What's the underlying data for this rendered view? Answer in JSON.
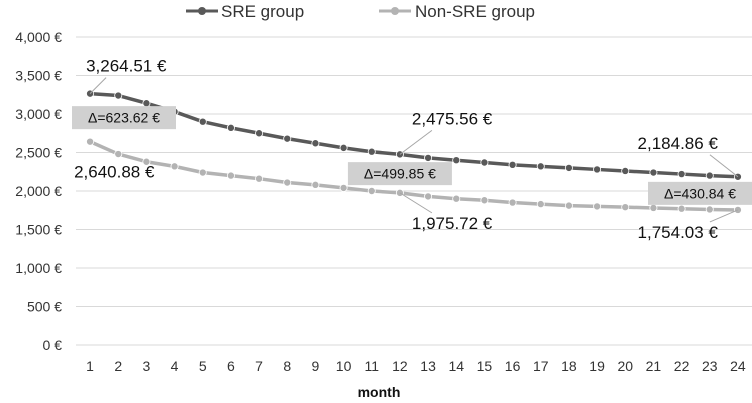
{
  "chart_data": {
    "type": "line",
    "xlabel": "month",
    "ylabel": "",
    "ylim": [
      0,
      4000
    ],
    "y_tick_values": [
      0,
      500,
      1000,
      1500,
      2000,
      2500,
      3000,
      3500,
      4000
    ],
    "y_tick_labels": [
      "0 €",
      "500 €",
      "1,000 €",
      "1,500 €",
      "2,000 €",
      "2,500 €",
      "3,000 €",
      "3,500 €",
      "4,000 €"
    ],
    "categories": [
      "1",
      "2",
      "3",
      "4",
      "5",
      "6",
      "7",
      "8",
      "9",
      "10",
      "11",
      "12",
      "13",
      "14",
      "15",
      "16",
      "17",
      "18",
      "19",
      "20",
      "21",
      "22",
      "23",
      "24"
    ],
    "grid": true,
    "legend_position": "top",
    "series": [
      {
        "name": "SRE group",
        "color": "#595959",
        "values": [
          3264.51,
          3240,
          3140,
          3030,
          2900,
          2820,
          2750,
          2680,
          2620,
          2560,
          2510,
          2475.56,
          2430,
          2400,
          2370,
          2340,
          2320,
          2300,
          2280,
          2260,
          2240,
          2220,
          2200,
          2184.86
        ]
      },
      {
        "name": "Non-SRE group",
        "color": "#b3b3b3",
        "values": [
          2640.88,
          2480,
          2380,
          2320,
          2240,
          2200,
          2160,
          2110,
          2080,
          2040,
          2000,
          1975.72,
          1930,
          1900,
          1880,
          1850,
          1830,
          1810,
          1800,
          1790,
          1780,
          1770,
          1760,
          1754.03
        ]
      }
    ],
    "annotations": [
      {
        "text": "3,264.51 €",
        "series": 0,
        "month": 1
      },
      {
        "text": "2,640.88 €",
        "series": 1,
        "month": 1
      },
      {
        "text": "2,475.56 €",
        "series": 0,
        "month": 12
      },
      {
        "text": "1,975.72 €",
        "series": 1,
        "month": 12
      },
      {
        "text": "2,184.86 €",
        "series": 0,
        "month": 24
      },
      {
        "text": "1,754.03 €",
        "series": 1,
        "month": 24
      }
    ],
    "differences": [
      {
        "text": "Δ=623.62 €",
        "month": 1
      },
      {
        "text": "Δ=499.85 €",
        "month": 12
      },
      {
        "text": "Δ=430.84 €",
        "month": 24
      }
    ]
  }
}
